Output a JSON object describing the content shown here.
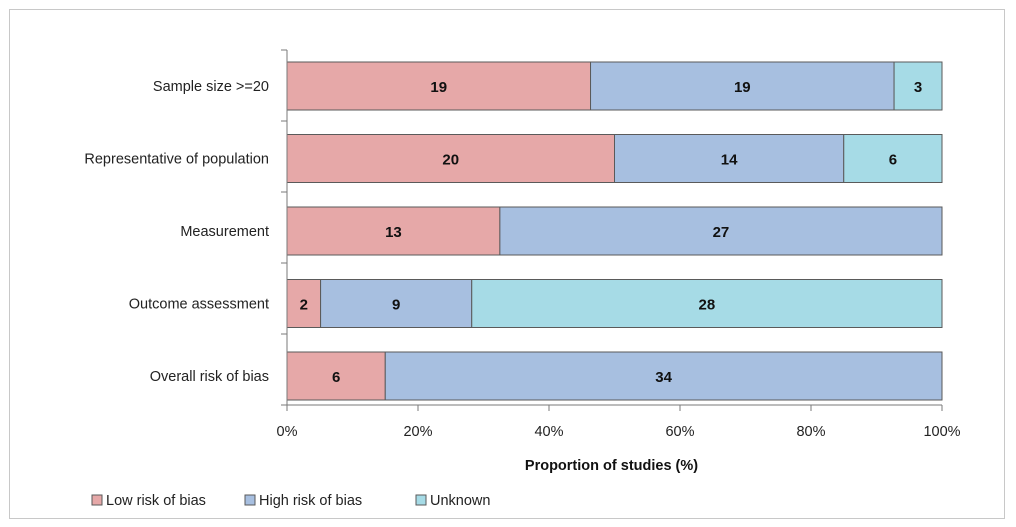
{
  "chart_data": {
    "type": "bar",
    "orientation": "horizontal",
    "stacked": "percent",
    "categories": [
      "Sample size >=20",
      "Representative of population",
      "Measurement",
      "Outcome assessment",
      "Overall risk of bias"
    ],
    "series": [
      {
        "name": "Low risk of bias",
        "values": [
          19,
          20,
          13,
          2,
          6
        ],
        "color": "#e6a8a8"
      },
      {
        "name": "High risk of bias",
        "values": [
          19,
          14,
          27,
          9,
          34
        ],
        "color": "#a7bfe0"
      },
      {
        "name": "Unknown",
        "values": [
          3,
          6,
          0,
          28,
          0
        ],
        "color": "#a6dbe6"
      }
    ],
    "totals": [
      41,
      40,
      40,
      39,
      40
    ],
    "xlabel": "Proportion of studies (%)",
    "xlim": [
      0,
      100
    ],
    "xticks": [
      "0%",
      "20%",
      "40%",
      "60%",
      "80%",
      "100%"
    ],
    "grid": false,
    "legend_position": "bottom-left"
  }
}
